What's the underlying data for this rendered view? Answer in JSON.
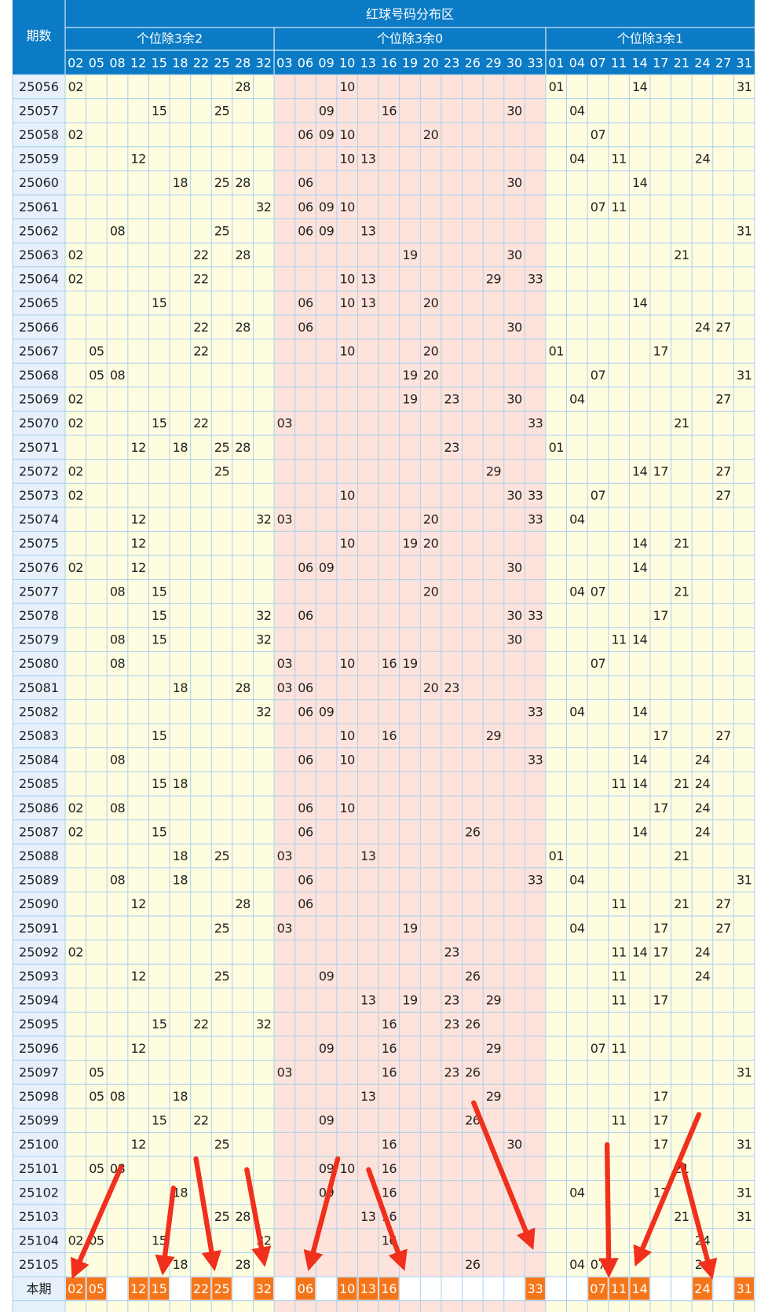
{
  "header": {
    "row_label": "期数",
    "title": "红球号码分布区",
    "groups": [
      {
        "label": "个位除3余2",
        "numbers": [
          "02",
          "05",
          "08",
          "12",
          "15",
          "18",
          "22",
          "25",
          "28",
          "32"
        ]
      },
      {
        "label": "个位除3余0",
        "numbers": [
          "03",
          "06",
          "09",
          "10",
          "13",
          "16",
          "19",
          "20",
          "23",
          "26",
          "29",
          "30",
          "33"
        ]
      },
      {
        "label": "个位除3余1",
        "numbers": [
          "01",
          "04",
          "07",
          "11",
          "14",
          "17",
          "21",
          "24",
          "27",
          "31"
        ]
      }
    ]
  },
  "rows": [
    {
      "period": "25056",
      "numbers": [
        "02",
        "28",
        "10",
        "01",
        "14",
        "31"
      ]
    },
    {
      "period": "25057",
      "numbers": [
        "15",
        "25",
        "09",
        "16",
        "30",
        "04"
      ]
    },
    {
      "period": "25058",
      "numbers": [
        "02",
        "06",
        "09",
        "10",
        "20",
        "07"
      ]
    },
    {
      "period": "25059",
      "numbers": [
        "12",
        "10",
        "13",
        "04",
        "11",
        "24"
      ]
    },
    {
      "period": "25060",
      "numbers": [
        "18",
        "25",
        "28",
        "06",
        "30",
        "14"
      ]
    },
    {
      "period": "25061",
      "numbers": [
        "32",
        "06",
        "09",
        "10",
        "07",
        "11"
      ]
    },
    {
      "period": "25062",
      "numbers": [
        "08",
        "25",
        "06",
        "09",
        "13",
        "31"
      ]
    },
    {
      "period": "25063",
      "numbers": [
        "02",
        "22",
        "28",
        "19",
        "30",
        "21"
      ]
    },
    {
      "period": "25064",
      "numbers": [
        "02",
        "22",
        "10",
        "13",
        "29",
        "33"
      ]
    },
    {
      "period": "25065",
      "numbers": [
        "15",
        "06",
        "10",
        "13",
        "20",
        "14"
      ]
    },
    {
      "period": "25066",
      "numbers": [
        "22",
        "28",
        "06",
        "30",
        "24",
        "27"
      ]
    },
    {
      "period": "25067",
      "numbers": [
        "05",
        "22",
        "10",
        "20",
        "01",
        "17"
      ]
    },
    {
      "period": "25068",
      "numbers": [
        "05",
        "08",
        "19",
        "20",
        "07",
        "31"
      ]
    },
    {
      "period": "25069",
      "numbers": [
        "02",
        "19",
        "23",
        "30",
        "04",
        "27"
      ]
    },
    {
      "period": "25070",
      "numbers": [
        "02",
        "15",
        "22",
        "03",
        "33",
        "21"
      ]
    },
    {
      "period": "25071",
      "numbers": [
        "12",
        "18",
        "25",
        "28",
        "23",
        "01"
      ]
    },
    {
      "period": "25072",
      "numbers": [
        "02",
        "25",
        "29",
        "14",
        "17",
        "27"
      ]
    },
    {
      "period": "25073",
      "numbers": [
        "02",
        "10",
        "30",
        "33",
        "07",
        "27"
      ]
    },
    {
      "period": "25074",
      "numbers": [
        "12",
        "32",
        "03",
        "20",
        "33",
        "04"
      ]
    },
    {
      "period": "25075",
      "numbers": [
        "12",
        "10",
        "19",
        "20",
        "14",
        "21"
      ]
    },
    {
      "period": "25076",
      "numbers": [
        "02",
        "12",
        "06",
        "09",
        "30",
        "14"
      ]
    },
    {
      "period": "25077",
      "numbers": [
        "08",
        "15",
        "20",
        "04",
        "07",
        "21"
      ]
    },
    {
      "period": "25078",
      "numbers": [
        "15",
        "32",
        "06",
        "30",
        "33",
        "17"
      ]
    },
    {
      "period": "25079",
      "numbers": [
        "08",
        "15",
        "32",
        "30",
        "11",
        "14"
      ]
    },
    {
      "period": "25080",
      "numbers": [
        "08",
        "03",
        "10",
        "16",
        "19",
        "07"
      ]
    },
    {
      "period": "25081",
      "numbers": [
        "18",
        "28",
        "03",
        "06",
        "20",
        "23"
      ]
    },
    {
      "period": "25082",
      "numbers": [
        "32",
        "06",
        "09",
        "33",
        "04",
        "14"
      ]
    },
    {
      "period": "25083",
      "numbers": [
        "15",
        "10",
        "16",
        "29",
        "17",
        "27"
      ]
    },
    {
      "period": "25084",
      "numbers": [
        "08",
        "06",
        "10",
        "33",
        "14",
        "24"
      ]
    },
    {
      "period": "25085",
      "numbers": [
        "15",
        "18",
        "11",
        "14",
        "21",
        "24"
      ]
    },
    {
      "period": "25086",
      "numbers": [
        "02",
        "08",
        "06",
        "10",
        "17",
        "24"
      ]
    },
    {
      "period": "25087",
      "numbers": [
        "02",
        "15",
        "06",
        "26",
        "14",
        "24"
      ]
    },
    {
      "period": "25088",
      "numbers": [
        "18",
        "25",
        "03",
        "13",
        "01",
        "21"
      ]
    },
    {
      "period": "25089",
      "numbers": [
        "08",
        "18",
        "06",
        "33",
        "04",
        "31"
      ]
    },
    {
      "period": "25090",
      "numbers": [
        "12",
        "28",
        "06",
        "11",
        "21",
        "27"
      ]
    },
    {
      "period": "25091",
      "numbers": [
        "25",
        "03",
        "19",
        "04",
        "17",
        "27"
      ]
    },
    {
      "period": "25092",
      "numbers": [
        "02",
        "23",
        "11",
        "14",
        "17",
        "24"
      ]
    },
    {
      "period": "25093",
      "numbers": [
        "12",
        "25",
        "09",
        "26",
        "11",
        "24"
      ]
    },
    {
      "period": "25094",
      "numbers": [
        "13",
        "19",
        "23",
        "29",
        "11",
        "17"
      ]
    },
    {
      "period": "25095",
      "numbers": [
        "15",
        "22",
        "32",
        "16",
        "23",
        "26"
      ]
    },
    {
      "period": "25096",
      "numbers": [
        "12",
        "09",
        "16",
        "29",
        "07",
        "11"
      ]
    },
    {
      "period": "25097",
      "numbers": [
        "05",
        "03",
        "16",
        "23",
        "26",
        "31"
      ]
    },
    {
      "period": "25098",
      "numbers": [
        "05",
        "08",
        "18",
        "13",
        "29",
        "17"
      ]
    },
    {
      "period": "25099",
      "numbers": [
        "15",
        "22",
        "09",
        "26",
        "11",
        "17"
      ]
    },
    {
      "period": "25100",
      "numbers": [
        "12",
        "25",
        "16",
        "30",
        "17",
        "31"
      ]
    },
    {
      "period": "25101",
      "numbers": [
        "05",
        "08",
        "09",
        "10",
        "16",
        "21"
      ]
    },
    {
      "period": "25102",
      "numbers": [
        "18",
        "09",
        "16",
        "04",
        "17",
        "31"
      ]
    },
    {
      "period": "25103",
      "numbers": [
        "25",
        "28",
        "13",
        "16",
        "21",
        "31"
      ]
    },
    {
      "period": "25104",
      "numbers": [
        "02",
        "05",
        "15",
        "32",
        "16",
        "24"
      ]
    },
    {
      "period": "25105",
      "numbers": [
        "18",
        "28",
        "26",
        "04",
        "07",
        "24"
      ]
    }
  ],
  "current": {
    "label": "本期",
    "numbers": [
      "02",
      "05",
      "12",
      "15",
      "22",
      "25",
      "32",
      "06",
      "10",
      "13",
      "16",
      "33",
      "07",
      "11",
      "14",
      "24",
      "31"
    ]
  }
}
